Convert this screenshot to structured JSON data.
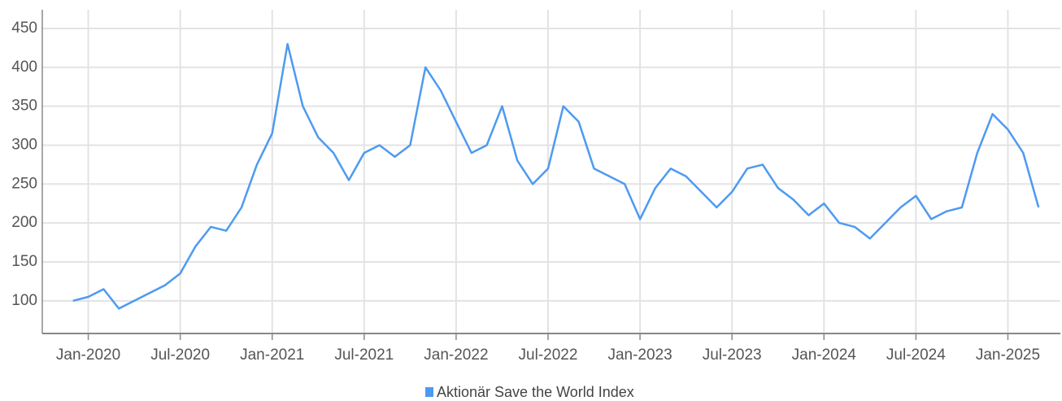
{
  "chart_data": {
    "type": "line",
    "x": [
      "2019-12",
      "2020-01",
      "2020-02",
      "2020-03",
      "2020-04",
      "2020-05",
      "2020-06",
      "2020-07",
      "2020-08",
      "2020-09",
      "2020-10",
      "2020-11",
      "2020-12",
      "2021-01",
      "2021-02",
      "2021-03",
      "2021-04",
      "2021-05",
      "2021-06",
      "2021-07",
      "2021-08",
      "2021-09",
      "2021-10",
      "2021-11",
      "2021-12",
      "2022-01",
      "2022-02",
      "2022-03",
      "2022-04",
      "2022-05",
      "2022-06",
      "2022-07",
      "2022-08",
      "2022-09",
      "2022-10",
      "2022-11",
      "2022-12",
      "2023-01",
      "2023-02",
      "2023-03",
      "2023-04",
      "2023-05",
      "2023-06",
      "2023-07",
      "2023-08",
      "2023-09",
      "2023-10",
      "2023-11",
      "2023-12",
      "2024-01",
      "2024-02",
      "2024-03",
      "2024-04",
      "2024-05",
      "2024-06",
      "2024-07",
      "2024-08",
      "2024-09",
      "2024-10",
      "2024-11",
      "2024-12",
      "2025-01",
      "2025-02",
      "2025-03"
    ],
    "series": [
      {
        "name": "Aktionär Save the World Index",
        "color": "#4e9af1",
        "values": [
          100,
          105,
          115,
          90,
          100,
          110,
          120,
          135,
          170,
          195,
          190,
          220,
          275,
          315,
          430,
          350,
          310,
          290,
          255,
          290,
          300,
          285,
          300,
          400,
          370,
          330,
          290,
          300,
          350,
          280,
          250,
          270,
          350,
          330,
          270,
          260,
          250,
          205,
          245,
          270,
          260,
          240,
          220,
          240,
          270,
          275,
          245,
          230,
          210,
          225,
          200,
          195,
          180,
          200,
          220,
          235,
          205,
          215,
          220,
          290,
          340,
          320,
          290,
          220
        ]
      }
    ],
    "xlim": [
      "2019-10",
      "2025-04"
    ],
    "xticks": [
      {
        "value": "2020-01",
        "label": "Jan-2020"
      },
      {
        "value": "2020-07",
        "label": "Jul-2020"
      },
      {
        "value": "2021-01",
        "label": "Jan-2021"
      },
      {
        "value": "2021-07",
        "label": "Jul-2021"
      },
      {
        "value": "2022-01",
        "label": "Jan-2022"
      },
      {
        "value": "2022-07",
        "label": "Jul-2022"
      },
      {
        "value": "2023-01",
        "label": "Jan-2023"
      },
      {
        "value": "2023-07",
        "label": "Jul-2023"
      },
      {
        "value": "2024-01",
        "label": "Jan-2024"
      },
      {
        "value": "2024-07",
        "label": "Jul-2024"
      },
      {
        "value": "2025-01",
        "label": "Jan-2025"
      }
    ],
    "ylim": [
      58,
      474
    ],
    "yticks": [
      100,
      150,
      200,
      250,
      300,
      350,
      400,
      450
    ],
    "grid": true,
    "legend": "bottom"
  }
}
